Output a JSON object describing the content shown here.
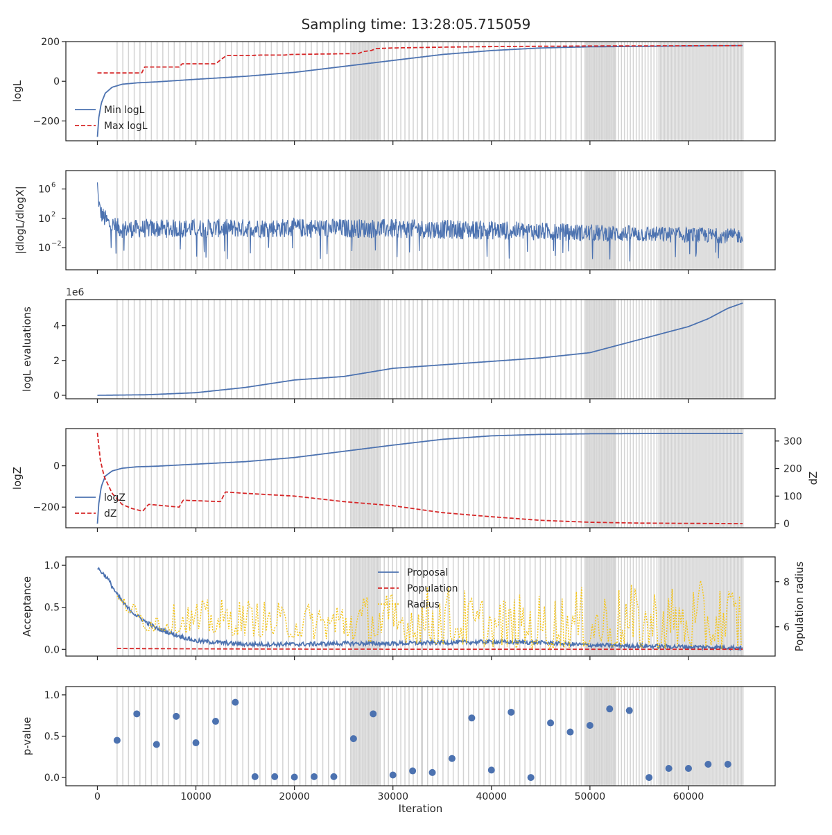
{
  "title": "Sampling time: 13:28:05.715059",
  "colors": {
    "blue": "#4c72b0",
    "red": "#d62728",
    "yellow": "#f5c518",
    "shade": "#d3d3d3",
    "axis": "#262626"
  },
  "chart_data": [
    {
      "type": "line",
      "id": "loglike",
      "ylabel": "logL",
      "xlim": [
        -3200,
        68800
      ],
      "ylim": [
        -300,
        200
      ],
      "yticks": [
        {
          "v": 200,
          "label": "200"
        },
        {
          "v": 0,
          "label": "0"
        },
        {
          "v": -200,
          "label": "−200"
        }
      ],
      "legend": {
        "placement": "lower-left",
        "entries": [
          "Min logL",
          "Max logL"
        ]
      },
      "series": [
        {
          "name": "Min logL",
          "style": "solid",
          "color": "blue",
          "x": [
            0,
            150,
            400,
            800,
            1500,
            2500,
            4000,
            6000,
            10000,
            15000,
            20000,
            25000,
            30000,
            35000,
            40000,
            45000,
            50000,
            55000,
            60000,
            65500
          ],
          "y": [
            -280,
            -180,
            -110,
            -60,
            -30,
            -15,
            -8,
            -3,
            10,
            25,
            45,
            75,
            105,
            135,
            155,
            168,
            174,
            176,
            178,
            180
          ]
        },
        {
          "name": "Max logL",
          "style": "dashed",
          "color": "red",
          "x": [
            0,
            4500,
            4800,
            8300,
            8600,
            12000,
            12300,
            12700,
            13100,
            15500,
            16500,
            19000,
            19500,
            26500,
            27000,
            27800,
            28300,
            30000,
            35000,
            40000,
            50000,
            65500
          ],
          "y": [
            42,
            42,
            72,
            72,
            88,
            88,
            100,
            115,
            130,
            130,
            132,
            132,
            135,
            140,
            150,
            155,
            165,
            168,
            172,
            175,
            178,
            180
          ]
        }
      ]
    },
    {
      "type": "line",
      "id": "gradient",
      "ylabel": "|dlogL/dlogX|",
      "yscale": "log",
      "ylim_exp": [
        -5,
        8.5
      ],
      "yticks": [
        {
          "exp": 6
        },
        {
          "exp": 2
        },
        {
          "exp": -2
        }
      ],
      "series": [
        {
          "name": "",
          "style": "noisy-band",
          "color": "blue",
          "x": [
            0,
            100,
            300,
            600,
            1200,
            2500,
            10000,
            20000,
            30000,
            40000,
            50000,
            60000,
            65500
          ],
          "upper_exp": [
            7.3,
            5.5,
            4.0,
            3.5,
            2.5,
            1.8,
            1.9,
            2.0,
            1.9,
            1.7,
            1.2,
            0.8,
            0.6
          ],
          "lower_exp": [
            5.5,
            2.5,
            0.5,
            -0.5,
            -1.5,
            -2.0,
            -2.0,
            -2.0,
            -2.1,
            -2.3,
            -2.4,
            -2.5,
            -2.5
          ]
        }
      ]
    },
    {
      "type": "line",
      "id": "evaluations",
      "ylabel": "logL evaluations",
      "offset_label": "1e6",
      "ylim": [
        -0.2,
        5.5
      ],
      "yticks": [
        {
          "v": 0,
          "label": "0"
        },
        {
          "v": 2,
          "label": "2"
        },
        {
          "v": 4,
          "label": "4"
        }
      ],
      "series": [
        {
          "name": "",
          "style": "solid",
          "color": "blue",
          "x": [
            0,
            5000,
            10000,
            15000,
            20000,
            25000,
            30000,
            35000,
            40000,
            45000,
            50000,
            55000,
            60000,
            62000,
            64000,
            65500
          ],
          "y": [
            0.0,
            0.03,
            0.15,
            0.45,
            0.88,
            1.08,
            1.55,
            1.75,
            1.95,
            2.15,
            2.45,
            3.2,
            3.95,
            4.4,
            5.0,
            5.3
          ]
        }
      ]
    },
    {
      "type": "line",
      "id": "evidence",
      "ylabel": "logZ",
      "ylabel_right": "dZ",
      "ylim": [
        -300,
        180
      ],
      "ylim_right": [
        -15,
        345
      ],
      "yticks": [
        {
          "v": 0,
          "label": "0"
        },
        {
          "v": -200,
          "label": "−200"
        }
      ],
      "yticks_right": [
        {
          "v": 300,
          "label": "300"
        },
        {
          "v": 200,
          "label": "200"
        },
        {
          "v": 100,
          "label": "100"
        },
        {
          "v": 0,
          "label": "0"
        }
      ],
      "legend": {
        "placement": "lower-left",
        "entries": [
          "logZ",
          "dZ"
        ]
      },
      "series": [
        {
          "name": "logZ",
          "style": "solid",
          "color": "blue",
          "axis": "left",
          "x": [
            0,
            150,
            400,
            800,
            1500,
            2500,
            4000,
            6000,
            10000,
            15000,
            20000,
            25000,
            30000,
            35000,
            40000,
            45000,
            50000,
            55000,
            60000,
            65500
          ],
          "y": [
            -280,
            -180,
            -100,
            -50,
            -25,
            -12,
            -5,
            -2,
            8,
            20,
            40,
            70,
            100,
            128,
            145,
            152,
            155,
            156,
            156,
            156
          ]
        },
        {
          "name": "dZ",
          "style": "dashed",
          "color": "red",
          "axis": "right",
          "x": [
            0,
            300,
            700,
            1500,
            2500,
            3500,
            4600,
            4900,
            5200,
            8300,
            8700,
            12500,
            13000,
            15000,
            20000,
            25000,
            30000,
            35000,
            40000,
            45000,
            50000,
            55000,
            60000,
            65500
          ],
          "y": [
            330,
            230,
            170,
            110,
            70,
            55,
            45,
            58,
            70,
            60,
            85,
            80,
            115,
            110,
            100,
            80,
            65,
            40,
            25,
            12,
            5,
            2,
            1,
            0
          ]
        }
      ]
    },
    {
      "type": "line",
      "id": "acceptance",
      "ylabel": "Acceptance",
      "ylabel_right": "Population radius",
      "ylim": [
        -0.08,
        1.1
      ],
      "ylim_right": [
        4.7,
        9.1
      ],
      "yticks": [
        {
          "v": 1.0,
          "label": "1.0"
        },
        {
          "v": 0.5,
          "label": "0.5"
        },
        {
          "v": 0.0,
          "label": "0.0"
        }
      ],
      "yticks_right": [
        {
          "v": 8,
          "label": "8"
        },
        {
          "v": 6,
          "label": "6"
        }
      ],
      "legend": {
        "placement": "top-center",
        "entries": [
          "Proposal",
          "Population",
          "Radius"
        ]
      },
      "series": [
        {
          "name": "Proposal",
          "style": "solid",
          "color": "blue",
          "axis": "left",
          "x": [
            0,
            1000,
            2000,
            3000,
            4000,
            5000,
            6000,
            8000,
            10000,
            15000,
            20000,
            25000,
            30000,
            35000,
            40000,
            45000,
            50000,
            55000,
            60000,
            65500
          ],
          "y": [
            0.97,
            0.85,
            0.65,
            0.5,
            0.4,
            0.32,
            0.25,
            0.17,
            0.1,
            0.06,
            0.06,
            0.07,
            0.07,
            0.08,
            0.09,
            0.08,
            0.05,
            0.04,
            0.03,
            0.02
          ]
        },
        {
          "name": "Population",
          "style": "dashed",
          "color": "red",
          "axis": "left",
          "x": [
            2000,
            10000,
            20000,
            30000,
            40000,
            50000,
            60000,
            65500
          ],
          "y": [
            0.01,
            0.006,
            0.003,
            0.002,
            0.001,
            0.001,
            0.001,
            0.001
          ]
        },
        {
          "name": "Radius",
          "style": "dotted-noisy",
          "color": "yellow",
          "axis": "right",
          "x": [
            2000,
            5000,
            10000,
            15000,
            20000,
            25000,
            30000,
            35000,
            40000,
            45000,
            50000,
            55000,
            60000,
            65500
          ],
          "low": [
            7.1,
            5.8,
            5.7,
            5.6,
            5.5,
            5.4,
            5.3,
            5.2,
            5.1,
            5.0,
            5.1,
            5.0,
            5.0,
            5.0
          ],
          "high": [
            7.5,
            6.8,
            7.2,
            7.3,
            7.0,
            7.5,
            7.6,
            8.0,
            7.4,
            7.5,
            7.8,
            7.9,
            8.0,
            8.2
          ]
        }
      ]
    },
    {
      "type": "scatter",
      "id": "pvalue",
      "ylabel": "p-value",
      "xlabel": "Iteration",
      "ylim": [
        -0.1,
        1.1
      ],
      "yticks": [
        {
          "v": 1.0,
          "label": "1.0"
        },
        {
          "v": 0.5,
          "label": "0.5"
        },
        {
          "v": 0.0,
          "label": "0.0"
        }
      ],
      "xticks": [
        {
          "v": 0,
          "label": "0"
        },
        {
          "v": 10000,
          "label": "10000"
        },
        {
          "v": 20000,
          "label": "20000"
        },
        {
          "v": 30000,
          "label": "30000"
        },
        {
          "v": 40000,
          "label": "40000"
        },
        {
          "v": 50000,
          "label": "50000"
        },
        {
          "v": 60000,
          "label": "60000"
        }
      ],
      "series": [
        {
          "name": "",
          "color": "blue",
          "x": [
            2000,
            4000,
            6000,
            8000,
            10000,
            12000,
            14000,
            16000,
            18000,
            20000,
            22000,
            24000,
            26000,
            28000,
            30000,
            32000,
            34000,
            36000,
            38000,
            40000,
            42000,
            44000,
            46000,
            48000,
            50000,
            52000,
            54000,
            56000,
            58000,
            60000,
            62000,
            64000
          ],
          "y": [
            0.45,
            0.77,
            0.4,
            0.74,
            0.42,
            0.68,
            0.91,
            0.01,
            0.01,
            0.005,
            0.01,
            0.01,
            0.47,
            0.77,
            0.03,
            0.08,
            0.06,
            0.23,
            0.72,
            0.09,
            0.79,
            0.0,
            0.66,
            0.55,
            0.63,
            0.83,
            0.81,
            0.0,
            0.11,
            0.11,
            0.16,
            0.16
          ]
        }
      ]
    }
  ],
  "shaded_iterations": {
    "sparse": {
      "start": 2000,
      "end": 25600,
      "step": 580
    },
    "dense": [
      {
        "start": 25700,
        "end": 28700,
        "step": 130
      },
      {
        "start": 28700,
        "end": 33000,
        "step": 420
      },
      {
        "start": 33000,
        "end": 49500,
        "step": 520
      },
      {
        "start": 49500,
        "end": 52600,
        "step": 120
      },
      {
        "start": 52600,
        "end": 57000,
        "step": 300
      },
      {
        "start": 57000,
        "end": 65600,
        "step": 140
      }
    ]
  }
}
